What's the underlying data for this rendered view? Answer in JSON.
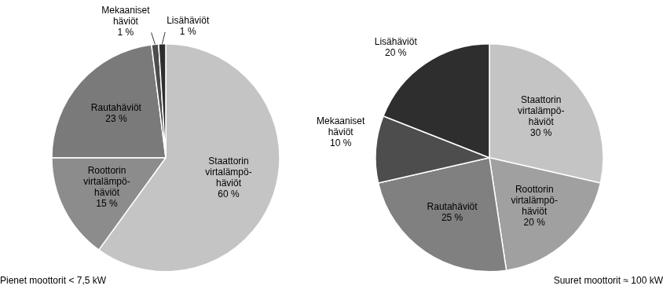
{
  "chart_data": [
    {
      "type": "pie",
      "title": "Pienet moottorit < 7,5 kW",
      "categories": [
        "Staattorin\nvirtalämpö-\nhäviöt",
        "Roottorin\nvirtalämpö-\nhäviöt",
        "Rautahäviöt",
        "Mekaaniset\nhäviöt",
        "Lisähäviöt"
      ],
      "values": [
        60,
        15,
        23,
        1,
        1
      ],
      "value_labels": [
        "60 %",
        "15 %",
        "23 %",
        "1 %",
        "1 %"
      ],
      "colors": [
        "#c4c4c4",
        "#8c8c8c",
        "#7a7a7a",
        "#4d4d4d",
        "#2e2e2e"
      ],
      "data_labels": true
    },
    {
      "type": "pie",
      "title": "Suuret moottorit ≈ 100 kW",
      "categories": [
        "Staattorin\nvirtalämpö-\nhäviöt",
        "Roottorin\nvirtalämpö-\nhäviöt",
        "Rautahäviöt",
        "Mekaaniset\nhäviöt",
        "Lisähäviöt"
      ],
      "values": [
        30,
        20,
        25,
        10,
        20
      ],
      "value_labels": [
        "30 %",
        "20 %",
        "25 %",
        "10 %",
        "20 %"
      ],
      "colors": [
        "#c4c4c4",
        "#a0a0a0",
        "#808080",
        "#4d4d4d",
        "#2e2e2e"
      ],
      "data_labels": true
    }
  ]
}
